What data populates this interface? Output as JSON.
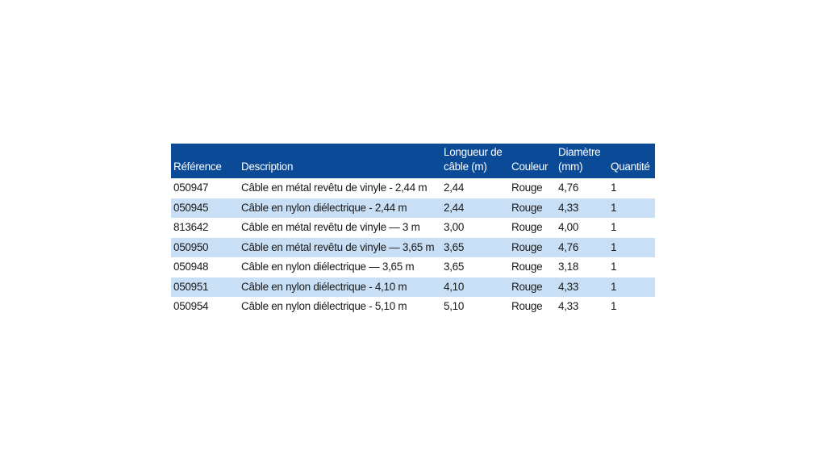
{
  "table": {
    "headers": {
      "reference": "Référence",
      "description": "Description",
      "length_line1": "Longueur de",
      "length_line2": "câble (m)",
      "color": "Couleur",
      "diameter_line1": "Diamètre",
      "diameter_line2": "(mm)",
      "quantity": "Quantité"
    },
    "rows": [
      {
        "reference": "050947",
        "description": "Câble en métal revêtu de vinyle - 2,44 m",
        "length": "2,44",
        "color": "Rouge",
        "diameter": "4,76",
        "quantity": "1"
      },
      {
        "reference": "050945",
        "description": "Câble en nylon diélectrique - 2,44 m",
        "length": "2,44",
        "color": "Rouge",
        "diameter": "4,33",
        "quantity": "1"
      },
      {
        "reference": "813642",
        "description": "Câble en métal revêtu de vinyle — 3 m",
        "length": "3,00",
        "color": "Rouge",
        "diameter": "4,00",
        "quantity": "1"
      },
      {
        "reference": "050950",
        "description": "Câble en métal revêtu de vinyle — 3,65 m",
        "length": "3,65",
        "color": "Rouge",
        "diameter": "4,76",
        "quantity": "1"
      },
      {
        "reference": "050948",
        "description": "Câble en nylon diélectrique — 3,65 m",
        "length": "3,65",
        "color": "Rouge",
        "diameter": "3,18",
        "quantity": "1"
      },
      {
        "reference": "050951",
        "description": "Câble en nylon diélectrique - 4,10 m",
        "length": "4,10",
        "color": "Rouge",
        "diameter": "4,33",
        "quantity": "1"
      },
      {
        "reference": "050954",
        "description": "Câble en nylon diélectrique - 5,10 m",
        "length": "5,10",
        "color": "Rouge",
        "diameter": "4,33",
        "quantity": "1"
      }
    ]
  },
  "colors": {
    "header_background": "#0a4a96",
    "header_text": "#ffffff",
    "stripe_row": "#c9dff5",
    "plain_row": "#ffffff"
  }
}
